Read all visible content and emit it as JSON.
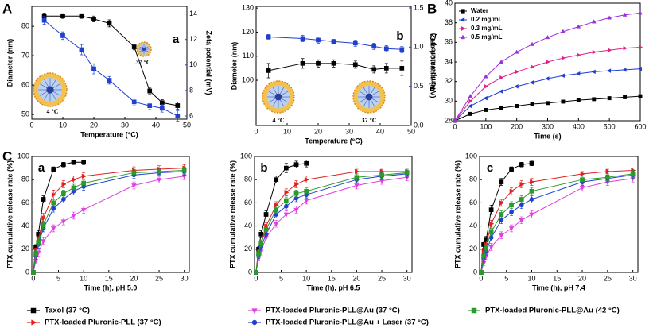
{
  "panel_labels": [
    "A",
    "B",
    "C"
  ],
  "chart_data": [
    {
      "type": "line",
      "panel": "a",
      "xlabel": "Temperature (°C)",
      "ylabel": "Diameter (nm)",
      "y2label": "Zeta potential (mV)",
      "x": [
        4,
        10,
        16,
        20,
        25,
        33,
        38,
        42,
        47
      ],
      "xlim": [
        0,
        50
      ],
      "xticks": [
        0,
        10,
        20,
        30,
        40,
        50
      ],
      "ylim": [
        48.4,
        86.8
      ],
      "yticks": [
        50,
        60,
        70,
        80
      ],
      "y2lim": [
        5.75,
        14.6
      ],
      "y2ticks": [
        6,
        8,
        10,
        12,
        14
      ],
      "series": [
        {
          "color": "#000000",
          "marker": "square",
          "values": [
            83.5,
            83.5,
            83.5,
            82.5,
            81,
            73,
            58,
            54,
            53
          ],
          "errors": [
            1,
            0.8,
            0.8,
            1,
            1.2,
            1,
            1,
            1,
            1.2
          ]
        },
        {
          "color": "#1f3fd0",
          "marker": "square",
          "axis": "y2",
          "values": [
            13.5,
            12.3,
            11.2,
            9.7,
            8.8,
            7.1,
            6.8,
            6.6,
            6.0
          ],
          "errors": [
            0.3,
            0.3,
            0.4,
            0.4,
            0.3,
            0.3,
            0.3,
            0.3,
            0.4
          ]
        }
      ],
      "annotations": [
        "37 °C",
        "4 °C"
      ]
    },
    {
      "type": "line",
      "panel": "b",
      "xlabel": "Temperature (°C)",
      "ylabel": "Diameter (nm)",
      "y2label": "Zeta potential (mV)",
      "x": [
        4,
        15,
        20,
        25,
        32,
        38,
        42,
        47
      ],
      "xlim": [
        0,
        50
      ],
      "xticks": [
        0,
        10,
        20,
        30,
        40,
        50
      ],
      "ylim": [
        81.2,
        130.7
      ],
      "yticks": [
        100,
        110,
        120,
        130
      ],
      "y2lim": [
        0,
        1.52
      ],
      "y2ticks": [
        {
          "value": 0,
          "label": "0.0"
        },
        {
          "value": 0.5,
          "label": "0.5"
        },
        {
          "value": 1,
          "label": "1.0"
        },
        {
          "value": 1.5,
          "label": "1.5"
        }
      ],
      "series": [
        {
          "color": "#000000",
          "marker": "square",
          "values": [
            104,
            107,
            107,
            107,
            106.5,
            104.5,
            105,
            105
          ],
          "errors": [
            3,
            2,
            1.5,
            1.5,
            1.5,
            1.5,
            2,
            3
          ]
        },
        {
          "color": "#1f3fd0",
          "marker": "square",
          "axis": "y2",
          "values": [
            1.13,
            1.11,
            1.09,
            1.07,
            1.05,
            1.01,
            0.98,
            0.97
          ],
          "errors": [
            0.03,
            0.04,
            0.04,
            0.03,
            0.04,
            0.04,
            0.04,
            0.04
          ]
        }
      ],
      "annotations": [
        "4 °C",
        "37 °C"
      ]
    },
    {
      "type": "line",
      "xlabel": "Time (s)",
      "ylabel": "Temperature (°C)",
      "legend": "upper left",
      "x": [
        0,
        50,
        100,
        150,
        200,
        250,
        300,
        350,
        400,
        450,
        500,
        550,
        600
      ],
      "xlim": [
        0,
        600
      ],
      "xticks": [
        0,
        100,
        200,
        300,
        400,
        500,
        600
      ],
      "ylim": [
        28,
        40
      ],
      "yticks": [
        28,
        30,
        32,
        34,
        36,
        38,
        40
      ],
      "series": [
        {
          "name": "Water",
          "color": "#000000",
          "marker": "square",
          "values": [
            28,
            28.7,
            29.1,
            29.3,
            29.5,
            29.7,
            29.8,
            29.95,
            30.1,
            30.2,
            30.3,
            30.4,
            30.5
          ]
        },
        {
          "name": "0.2 mg/mL",
          "color": "#1f3fd0",
          "marker": "triangle-left",
          "values": [
            28,
            29.5,
            30.3,
            31,
            31.5,
            31.9,
            32.3,
            32.6,
            32.8,
            33,
            33.1,
            33.2,
            33.3
          ]
        },
        {
          "name": "0.3 mg/mL",
          "color": "#e0208a",
          "marker": "triangle-right",
          "values": [
            28,
            30,
            31.5,
            32.4,
            33,
            33.5,
            34,
            34.4,
            34.7,
            35,
            35.2,
            35.4,
            35.5
          ]
        },
        {
          "name": "0.5 mg/mL",
          "color": "#9b30e0",
          "marker": "triangle-up",
          "values": [
            28,
            30.5,
            32.5,
            34,
            35,
            35.8,
            36.5,
            37.1,
            37.6,
            38.1,
            38.5,
            38.8,
            39
          ]
        }
      ]
    },
    {
      "type": "line",
      "panel": "a",
      "xlabel": "Time (h), pH 5.0",
      "ylabel": "PTX cumulative release rate (%)",
      "legend": "below",
      "x": [
        0,
        0.5,
        1,
        2,
        4,
        6,
        8,
        10,
        20,
        25,
        30
      ],
      "xlim": [
        -0.3,
        31
      ],
      "xticks": [
        0,
        5,
        10,
        15,
        20,
        25,
        30
      ],
      "ylim": [
        0,
        100
      ],
      "yticks": [
        0,
        20,
        40,
        60,
        80,
        100
      ],
      "series": [
        {
          "name": "Taxol (37 °C)",
          "color": "#000000",
          "marker": "square",
          "values": [
            0,
            22,
            33,
            63,
            89,
            93,
            95,
            95,
            null,
            null,
            null
          ],
          "errors": [
            0,
            2,
            3,
            3,
            2,
            2,
            2,
            2,
            null,
            null,
            null
          ]
        },
        {
          "name": "PTX-loaded Pluronic-PLL (37 °C)",
          "color": "#e02020",
          "marker": "triangle-right",
          "values": [
            0,
            18,
            28,
            47,
            67,
            76,
            80,
            83,
            88,
            89,
            90
          ],
          "errors": [
            0,
            3,
            3,
            4,
            4,
            3,
            3,
            3,
            3,
            3,
            3
          ]
        },
        {
          "name": "PTX-loaded Pluronic-PLL@Au (37 °C)",
          "color": "#e040e0",
          "marker": "triangle-down",
          "values": [
            0,
            10,
            17,
            27,
            38,
            44,
            49,
            54,
            75,
            80,
            83
          ],
          "errors": [
            0,
            2,
            3,
            3,
            3,
            3,
            3,
            3,
            3,
            3,
            3
          ]
        },
        {
          "name": "PTX-loaded Pluronic-PLL@Au + Laser (37 °C)",
          "color": "#1f3fd0",
          "marker": "circle",
          "values": [
            0,
            14,
            24,
            38,
            55,
            63,
            70,
            74,
            84,
            86,
            87
          ],
          "errors": [
            0,
            3,
            3,
            3,
            3,
            3,
            3,
            3,
            3,
            3,
            3
          ]
        },
        {
          "name": "PTX-loaded Pluronic-PLL@Au (42 °C)",
          "color": "#2a9a2a",
          "marker": "square",
          "values": [
            0,
            16,
            26,
            41,
            60,
            68,
            73,
            77,
            86,
            87,
            88
          ],
          "errors": [
            0,
            3,
            3,
            3,
            3,
            3,
            3,
            3,
            3,
            3,
            3
          ]
        }
      ]
    },
    {
      "type": "line",
      "panel": "b",
      "xlabel": "Time (h), pH 6.5",
      "ylabel": "PTX cumulative release rate (%)",
      "x": [
        0,
        0.5,
        1,
        2,
        4,
        6,
        8,
        10,
        20,
        25,
        30
      ],
      "xlim": [
        -0.3,
        31
      ],
      "xticks": [
        0,
        5,
        10,
        15,
        20,
        25,
        30
      ],
      "ylim": [
        0,
        100
      ],
      "yticks": [
        0,
        20,
        40,
        60,
        80,
        100
      ],
      "series": [
        {
          "color": "#000000",
          "marker": "square",
          "values": [
            0,
            20,
            33,
            50,
            80,
            90,
            93,
            94,
            null,
            null,
            null
          ],
          "errors": [
            0,
            2,
            3,
            3,
            3,
            4,
            3,
            3,
            null,
            null,
            null
          ]
        },
        {
          "color": "#e02020",
          "marker": "triangle-right",
          "values": [
            0,
            17,
            25,
            40,
            58,
            69,
            76,
            80,
            87,
            87,
            87
          ],
          "errors": [
            0,
            3,
            3,
            3,
            3,
            3,
            3,
            3,
            2,
            2,
            2
          ]
        },
        {
          "color": "#e040e0",
          "marker": "triangle-down",
          "values": [
            0,
            12,
            18,
            30,
            42,
            50,
            54,
            62,
            75,
            79,
            82
          ],
          "errors": [
            0,
            2,
            3,
            3,
            3,
            3,
            3,
            3,
            3,
            3,
            3
          ]
        },
        {
          "color": "#1f3fd0",
          "marker": "circle",
          "values": [
            0,
            15,
            22,
            33,
            50,
            57,
            64,
            67,
            80,
            83,
            85
          ],
          "errors": [
            0,
            3,
            3,
            3,
            3,
            3,
            3,
            3,
            3,
            3,
            3
          ]
        },
        {
          "color": "#2a9a2a",
          "marker": "square",
          "values": [
            0,
            16,
            25,
            37,
            54,
            62,
            68,
            70,
            82,
            84,
            86
          ],
          "errors": [
            0,
            3,
            3,
            3,
            3,
            3,
            3,
            3,
            3,
            3,
            3
          ]
        }
      ]
    },
    {
      "type": "line",
      "panel": "c",
      "xlabel": "Time (h), pH 7.4",
      "ylabel": "PTX cumulative release rate (%)",
      "x": [
        0,
        0.5,
        1,
        2,
        4,
        6,
        8,
        10,
        20,
        25,
        30
      ],
      "xlim": [
        -0.3,
        31
      ],
      "xticks": [
        0,
        5,
        10,
        15,
        20,
        25,
        30
      ],
      "ylim": [
        0,
        100
      ],
      "yticks": [
        0,
        20,
        40,
        60,
        80,
        100
      ],
      "series": [
        {
          "color": "#000000",
          "marker": "square",
          "values": [
            0,
            24,
            28,
            54,
            78,
            89,
            93,
            94,
            null,
            null,
            null
          ],
          "errors": [
            0,
            3,
            3,
            4,
            3,
            2,
            2,
            2,
            null,
            null,
            null
          ]
        },
        {
          "color": "#e02020",
          "marker": "triangle-right",
          "values": [
            0,
            18,
            24,
            42,
            60,
            70,
            76,
            78,
            85,
            87,
            88
          ],
          "errors": [
            0,
            3,
            3,
            3,
            3,
            3,
            3,
            3,
            2,
            2,
            2
          ]
        },
        {
          "color": "#e040e0",
          "marker": "triangle-down",
          "values": [
            0,
            8,
            14,
            22,
            32,
            38,
            45,
            50,
            73,
            78,
            81
          ],
          "errors": [
            0,
            2,
            3,
            3,
            3,
            3,
            3,
            3,
            3,
            3,
            3
          ]
        },
        {
          "color": "#1f3fd0",
          "marker": "circle",
          "values": [
            0,
            12,
            18,
            30,
            45,
            52,
            58,
            63,
            78,
            81,
            84
          ],
          "errors": [
            0,
            3,
            3,
            3,
            3,
            3,
            3,
            3,
            3,
            3,
            3
          ]
        },
        {
          "color": "#2a9a2a",
          "marker": "square",
          "values": [
            0,
            14,
            21,
            35,
            50,
            58,
            63,
            70,
            80,
            82,
            85
          ],
          "errors": [
            0,
            3,
            3,
            3,
            3,
            3,
            3,
            3,
            3,
            3,
            3
          ]
        }
      ]
    }
  ]
}
